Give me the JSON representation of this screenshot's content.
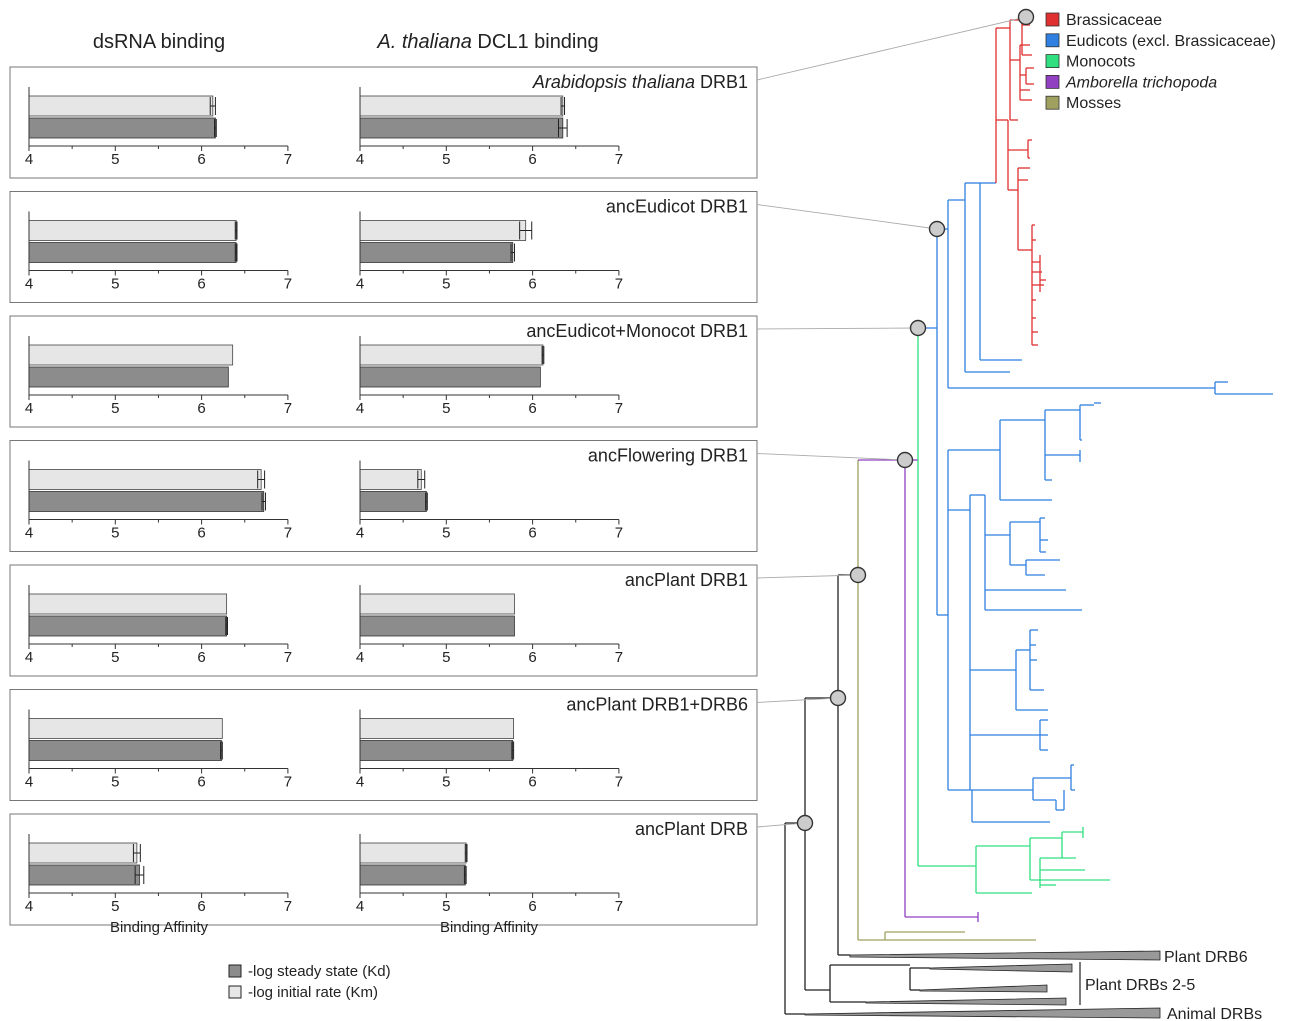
{
  "column_titles": {
    "left": "dsRNA binding",
    "right_italic": "A. thaliana",
    "right_rest": " DCL1 binding"
  },
  "x_axis": {
    "ticks": [
      "4",
      "5",
      "6",
      "7"
    ],
    "label": "Binding Affinity"
  },
  "legend": {
    "kd": "-log steady state (Kd)",
    "km": "-log initial rate (Km)"
  },
  "colors": {
    "km_bar": "#e6e6e6",
    "kd_bar": "#8c8c8c",
    "node": "#cccccc"
  },
  "tree_legend": [
    {
      "label": "Brassicaceae",
      "color": "#e03030",
      "italic": false
    },
    {
      "label": "Eudicots (excl. Brassicaceae)",
      "color": "#2f80e0",
      "italic": false
    },
    {
      "label": "Monocots",
      "color": "#30e080",
      "italic": false
    },
    {
      "label": "Amborella trichopoda",
      "color": "#9040c0",
      "italic": true
    },
    {
      "label": "Mosses",
      "color": "#a0a060",
      "italic": false
    }
  ],
  "outgroup_labels": {
    "drb6": "Plant DRB6",
    "drb25": "Plant DRBs 2-5",
    "animal": "Animal DRBs"
  },
  "chart_data": {
    "type": "bar",
    "orientation": "horizontal",
    "xlim": [
      4,
      7
    ],
    "xticks": [
      4,
      5,
      6,
      7
    ],
    "xlabel": "Binding Affinity",
    "panels": [
      {
        "label": "Arabidopsis thaliana DRB1",
        "italic_part": "Arabidopsis thaliana",
        "plain_part": " DRB1",
        "dsRNA": {
          "km": 6.13,
          "km_err": 0.03,
          "kd": 6.16,
          "kd_err": 0.01
        },
        "dcl1": {
          "km": 6.35,
          "km_err": 0.02,
          "kd": 6.35,
          "kd_err": 0.05
        }
      },
      {
        "label": "ancEudicot DRB1",
        "italic_part": "",
        "plain_part": "ancEudicot DRB1",
        "dsRNA": {
          "km": 6.4,
          "km_err": 0.01,
          "kd": 6.4,
          "kd_err": 0.01
        },
        "dcl1": {
          "km": 5.92,
          "km_err": 0.07,
          "kd": 5.77,
          "kd_err": 0.02
        }
      },
      {
        "label": "ancEudicot+Monocot DRB1",
        "italic_part": "",
        "plain_part": "ancEudicot+Monocot DRB1",
        "dsRNA": {
          "km": 6.36,
          "km_err": 0.0,
          "kd": 6.31,
          "kd_err": 0.0
        },
        "dcl1": {
          "km": 6.12,
          "km_err": 0.01,
          "kd": 6.09,
          "kd_err": 0.0
        }
      },
      {
        "label": "ancFlowering DRB1",
        "italic_part": "",
        "plain_part": "ancFlowering DRB1",
        "dsRNA": {
          "km": 6.69,
          "km_err": 0.04,
          "kd": 6.72,
          "kd_err": 0.02
        },
        "dcl1": {
          "km": 4.71,
          "km_err": 0.04,
          "kd": 4.77,
          "kd_err": 0.01
        }
      },
      {
        "label": "ancPlant DRB1",
        "italic_part": "",
        "plain_part": "ancPlant DRB1",
        "dsRNA": {
          "km": 6.29,
          "km_err": 0.0,
          "kd": 6.29,
          "kd_err": 0.01
        },
        "dcl1": {
          "km": 5.79,
          "km_err": 0.0,
          "kd": 5.79,
          "kd_err": 0.0
        }
      },
      {
        "label": "ancPlant DRB1+DRB6",
        "italic_part": "",
        "plain_part": "ancPlant DRB1+DRB6",
        "dsRNA": {
          "km": 6.24,
          "km_err": 0.0,
          "kd": 6.23,
          "kd_err": 0.01
        },
        "dcl1": {
          "km": 5.78,
          "km_err": 0.0,
          "kd": 5.77,
          "kd_err": 0.01
        }
      },
      {
        "label": "ancPlant DRB",
        "italic_part": "",
        "plain_part": "ancPlant DRB",
        "dsRNA": {
          "km": 5.25,
          "km_err": 0.04,
          "kd": 5.28,
          "kd_err": 0.05
        },
        "dcl1": {
          "km": 5.23,
          "km_err": 0.01,
          "kd": 5.22,
          "kd_err": 0.01
        }
      }
    ]
  }
}
